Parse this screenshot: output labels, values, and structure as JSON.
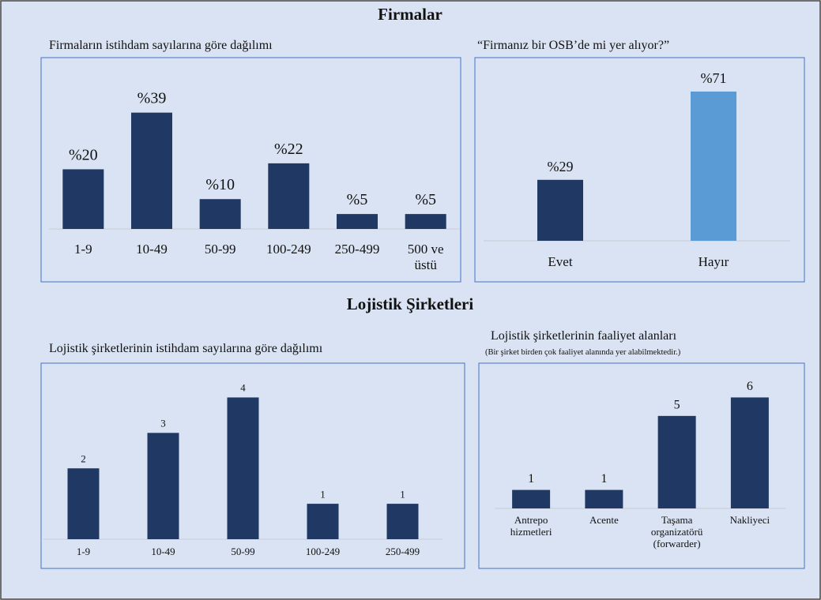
{
  "headings": [
    "Firmalar",
    "Lojistik Şirketleri"
  ],
  "chart_data": [
    {
      "type": "bar",
      "title": "Firmaların istihdam sayılarına göre dağılımı",
      "categories": [
        "1-9",
        "10-49",
        "50-99",
        "100-249",
        "250-499",
        "500 ve üstü"
      ],
      "values": [
        20,
        39,
        10,
        22,
        5,
        5
      ],
      "value_labels": [
        "%20",
        "%39",
        "%10",
        "%22",
        "%5",
        "%5"
      ],
      "color": "#1f3864",
      "ylim": [
        0,
        45
      ]
    },
    {
      "type": "bar",
      "title": "“Firmanız bir OSB’de mi yer alıyor?”",
      "categories": [
        "Evet",
        "Hayır"
      ],
      "values": [
        29,
        71
      ],
      "value_labels": [
        "%29",
        "%71"
      ],
      "colors": [
        "#1f3864",
        "#5b9bd5"
      ],
      "ylim": [
        0,
        80
      ]
    },
    {
      "type": "bar",
      "title": "Lojistik şirketlerinin istihdam sayılarına göre dağılımı",
      "categories": [
        "1-9",
        "10-49",
        "50-99",
        "100-249",
        "250-499"
      ],
      "values": [
        2,
        3,
        4,
        1,
        1
      ],
      "color": "#1f3864",
      "ylim": [
        0,
        4.5
      ]
    },
    {
      "type": "bar",
      "title": "Lojistik şirketlerinin faaliyet alanları",
      "subtitle": "(Bir şirket birden çok faaliyet alanında yer alabilmektedir.)",
      "categories": [
        "Antrepo hizmetleri",
        "Acente",
        "Taşama organizatörü (forwarder)",
        "Nakliyeci"
      ],
      "values": [
        1,
        1,
        5,
        6
      ],
      "color": "#1f3864",
      "ylim": [
        0,
        7
      ]
    }
  ]
}
